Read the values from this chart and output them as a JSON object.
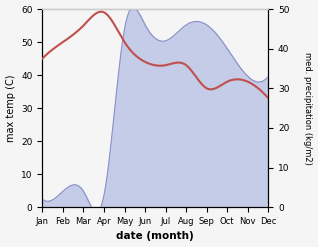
{
  "months": [
    "Jan",
    "Feb",
    "Mar",
    "Apr",
    "May",
    "Jun",
    "Jul",
    "Aug",
    "Sep",
    "Oct",
    "Nov",
    "Dec"
  ],
  "temperature": [
    45,
    50,
    55,
    59,
    50,
    44,
    43,
    43,
    36,
    38,
    38,
    33
  ],
  "precipitation": [
    2,
    4,
    4,
    3,
    45,
    46,
    42,
    46,
    46,
    40,
    33,
    33
  ],
  "temp_color": "#c0504d",
  "precip_fill_color": "#c5cce8",
  "precip_line_color": "#8a90c8",
  "left_ylabel": "max temp (C)",
  "right_ylabel": "med. precipitation (kg/m2)",
  "xlabel": "date (month)",
  "ylim_left": [
    0,
    60
  ],
  "ylim_right": [
    0,
    50
  ],
  "bg_color": "#f5f5f5",
  "plot_bg_color": "#ffffff"
}
